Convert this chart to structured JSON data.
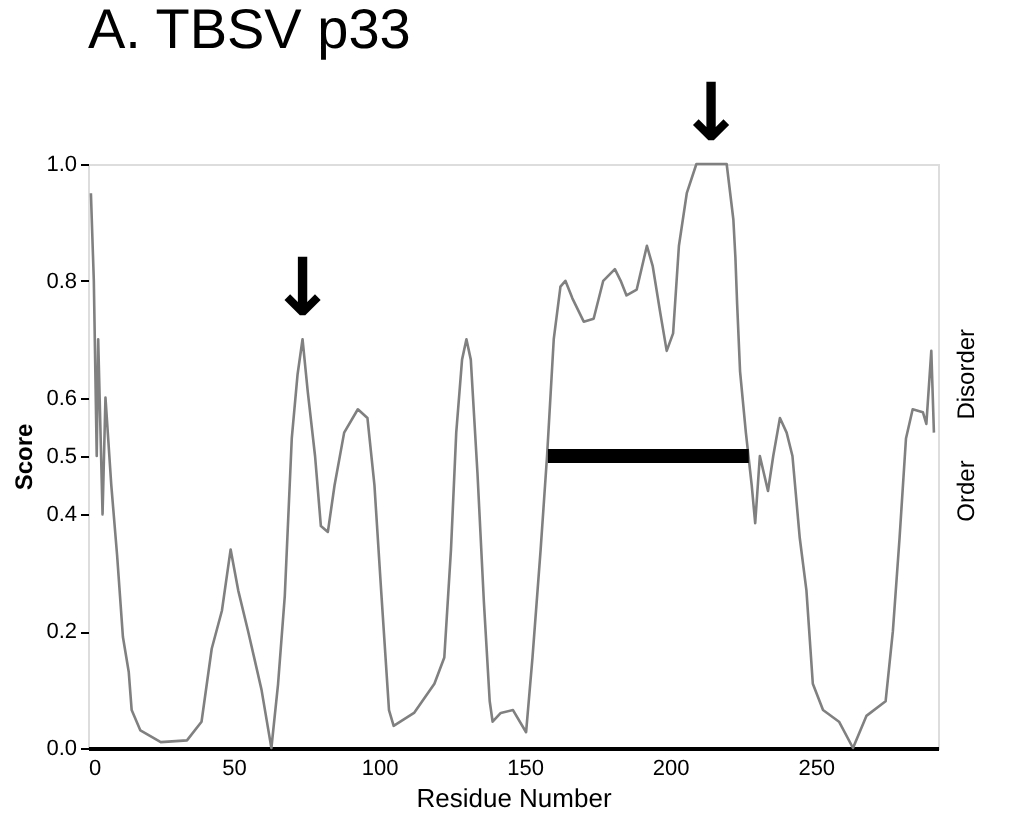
{
  "chart_data": {
    "type": "line",
    "title": "A. TBSV p33",
    "xlabel": "Residue Number",
    "ylabel": "Score",
    "xlim": [
      0,
      292
    ],
    "ylim": [
      0,
      1.0
    ],
    "xticks": [
      0,
      50,
      100,
      150,
      200,
      250
    ],
    "yticks": [
      {
        "value": 0,
        "label": "0.0"
      },
      0.2,
      0.4,
      0.5,
      0.6,
      0.8,
      {
        "value": 1.0,
        "label": "1.0"
      }
    ],
    "grid": false,
    "series": [
      {
        "color": "#808080",
        "x": [
          1,
          2,
          3,
          3.5,
          5,
          6,
          8,
          10,
          12,
          14,
          15,
          18,
          25,
          34,
          39,
          42.5,
          46,
          49,
          51.6,
          55,
          59.6,
          63,
          65.3,
          67.6,
          70,
          72,
          73.7,
          75.5,
          78,
          80,
          82.4,
          84.7,
          88,
          92.7,
          96,
          98.4,
          100.7,
          103.4,
          105,
          112,
          119,
          122.4,
          124.7,
          126.5,
          128.5,
          130,
          131.5,
          133.8,
          136,
          138,
          139,
          141.8,
          146,
          150.5,
          152.7,
          155.5,
          157.7,
          160,
          162.3,
          164,
          166.4,
          170.3,
          173.7,
          177,
          181,
          183,
          185,
          188.5,
          192,
          194,
          196.6,
          198.8,
          201,
          203,
          205.7,
          209,
          214,
          219.4,
          221.7,
          222.4,
          223,
          224,
          226,
          228,
          229.2,
          230.8,
          233.6,
          235.4,
          237.7,
          240,
          242,
          244.5,
          246.8,
          249,
          252.5,
          258,
          262.8,
          267.4,
          274,
          276.5,
          278.8,
          281,
          283.3,
          286.8,
          288,
          289.7,
          290.6
        ],
        "values": [
          0.95,
          0.8,
          0.5,
          0.7,
          0.4,
          0.6,
          0.45,
          0.33,
          0.19,
          0.13,
          0.065,
          0.03,
          0.01,
          0.013,
          0.045,
          0.17,
          0.235,
          0.34,
          0.27,
          0.2,
          0.1,
          0.0,
          0.11,
          0.26,
          0.53,
          0.64,
          0.7,
          0.61,
          0.5,
          0.38,
          0.37,
          0.45,
          0.54,
          0.58,
          0.565,
          0.45,
          0.27,
          0.065,
          0.038,
          0.06,
          0.11,
          0.155,
          0.34,
          0.54,
          0.665,
          0.7,
          0.665,
          0.47,
          0.25,
          0.08,
          0.045,
          0.06,
          0.065,
          0.027,
          0.155,
          0.34,
          0.5,
          0.7,
          0.79,
          0.8,
          0.77,
          0.73,
          0.735,
          0.8,
          0.82,
          0.8,
          0.775,
          0.785,
          0.86,
          0.825,
          0.745,
          0.68,
          0.71,
          0.86,
          0.95,
          1.0,
          1.0,
          1.0,
          0.905,
          0.84,
          0.76,
          0.645,
          0.54,
          0.45,
          0.385,
          0.5,
          0.44,
          0.5,
          0.565,
          0.54,
          0.5,
          0.36,
          0.27,
          0.11,
          0.065,
          0.045,
          0.0,
          0.055,
          0.08,
          0.2,
          0.36,
          0.53,
          0.58,
          0.575,
          0.555,
          0.68,
          0.54
        ]
      },
      {
        "color": "#000000",
        "x": [
          158,
          227
        ],
        "values": [
          0.5,
          0.5
        ]
      }
    ],
    "annotations": [
      "Disorder",
      "Order",
      {
        "text": "↓",
        "x": 73.7,
        "y": 0.7
      },
      {
        "text": "↓",
        "x": 214,
        "y": 1.0
      }
    ]
  }
}
